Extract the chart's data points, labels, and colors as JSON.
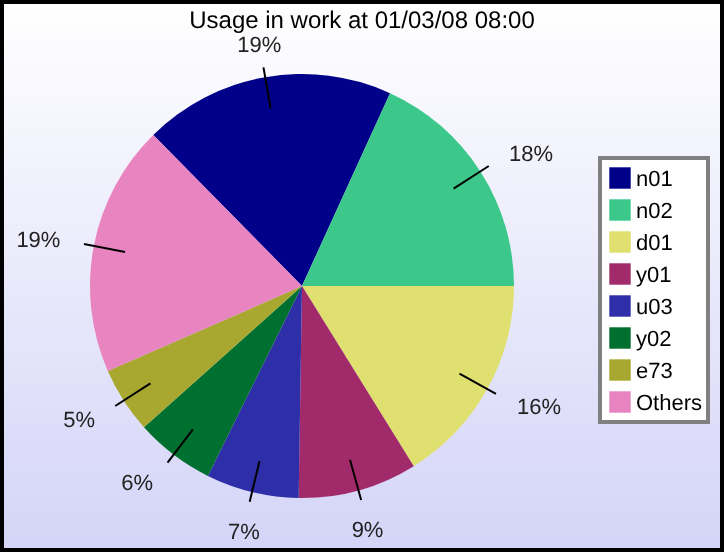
{
  "chart_data": {
    "type": "pie",
    "title": "Usage in work at 01/03/08 08:00",
    "categories": [
      "n01",
      "n02",
      "d01",
      "y01",
      "u03",
      "y02",
      "e73",
      "Others"
    ],
    "values": [
      19,
      18,
      16,
      9,
      7,
      6,
      5,
      19
    ],
    "value_labels": [
      "19%",
      "18%",
      "16%",
      "9%",
      "7%",
      "6%",
      "5%",
      "19%"
    ],
    "colors": [
      "#000088",
      "#3cc88a",
      "#e0e070",
      "#a02a6a",
      "#2e2ea8",
      "#007030",
      "#a8a830",
      "#e884c0"
    ],
    "legend": "right"
  }
}
